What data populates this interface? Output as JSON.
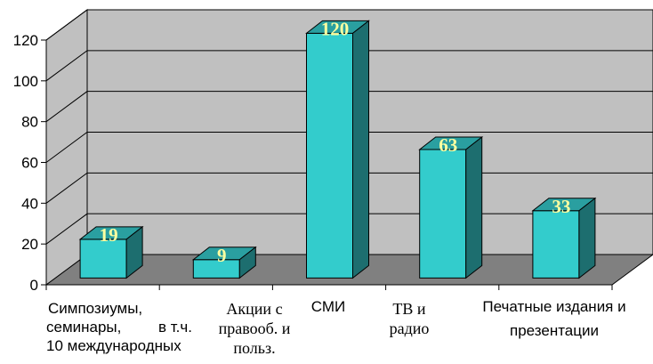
{
  "chart_data": {
    "type": "bar",
    "title": "",
    "xlabel": "",
    "ylabel": "",
    "ylim": [
      0,
      120
    ],
    "yticks": [
      0,
      20,
      40,
      60,
      80,
      100,
      120
    ],
    "grid": true,
    "legend": "none",
    "style": "3d-column",
    "categories": [
      "Симпозиумы, семинары, в т.ч. 10 международных",
      "Акции с правооб. и польз.",
      "СМИ",
      "ТВ и радио",
      "Печатные издания и презентации"
    ],
    "category_lines": [
      [
        "Симпозиумы,",
        "семинары,",
        "в т.ч.",
        "10 международных"
      ],
      [
        "Акции с",
        "правооб. и",
        "польз."
      ],
      [
        "СМИ"
      ],
      [
        "ТВ и",
        "радио"
      ],
      [
        "Печатные издания и",
        "презентации"
      ]
    ],
    "values": [
      19,
      9,
      120,
      63,
      33
    ],
    "value_labels": [
      "19",
      "9",
      "120",
      "63",
      "33"
    ],
    "colors": {
      "bar_front": "#33cccc",
      "bar_top": "#2a9fa0",
      "bar_side": "#1d6e6f",
      "back_wall": "#c0c0c0",
      "floor": "#808080",
      "value_label": "#ffffa0"
    }
  }
}
